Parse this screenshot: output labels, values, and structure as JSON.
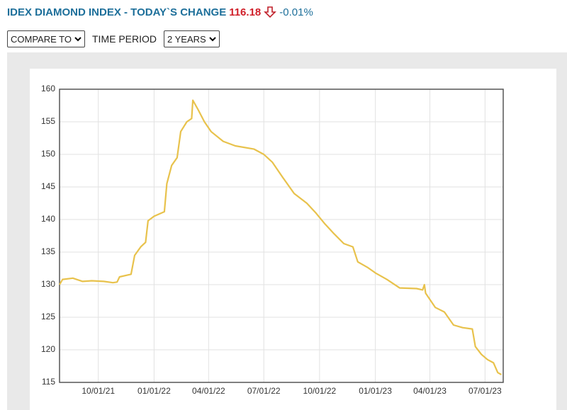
{
  "header": {
    "title": "IDEX DIAMOND INDEX - TODAY`S CHANGE",
    "price": "116.18",
    "change": "-0.01%"
  },
  "controls": {
    "compare": "COMPARE TO",
    "period_label": "TIME PERIOD",
    "period": "2 YEARS"
  },
  "chart_data": {
    "type": "line",
    "color": "#e8c24c",
    "grid": true,
    "xlim": [
      "07/29/21",
      "07/31/23"
    ],
    "xticks": [
      "10/01/21",
      "01/01/22",
      "04/01/22",
      "07/01/22",
      "10/01/22",
      "01/01/23",
      "04/01/23",
      "07/01/23"
    ],
    "ylim": [
      115,
      160
    ],
    "yticks": [
      115,
      120,
      125,
      130,
      135,
      140,
      145,
      150,
      155,
      160
    ],
    "x": [
      "07/29/21",
      "08/03/21",
      "08/20/21",
      "09/05/21",
      "09/20/21",
      "10/10/21",
      "10/25/21",
      "11/01/21",
      "11/05/21",
      "11/24/21",
      "11/30/21",
      "12/10/21",
      "12/18/21",
      "12/22/21",
      "01/01/22",
      "01/18/22",
      "01/22/22",
      "01/30/22",
      "02/08/22",
      "02/14/22",
      "02/24/22",
      "03/04/22",
      "03/06/22",
      "03/15/22",
      "03/25/22",
      "04/05/22",
      "04/25/22",
      "05/15/22",
      "06/15/22",
      "07/01/22",
      "07/15/22",
      "08/01/22",
      "08/20/22",
      "09/10/22",
      "09/25/22",
      "10/10/22",
      "10/25/22",
      "11/10/22",
      "11/25/22",
      "12/03/22",
      "12/20/22",
      "01/01/23",
      "01/20/23",
      "02/10/23",
      "03/10/23",
      "03/20/23",
      "03/23/23",
      "03/25/23",
      "04/10/23",
      "04/25/23",
      "05/10/23",
      "05/25/23",
      "06/10/23",
      "06/15/23",
      "06/25/23",
      "07/05/23",
      "07/15/23",
      "07/22/23",
      "07/28/23"
    ],
    "values": [
      130.0,
      130.8,
      131.0,
      130.5,
      130.6,
      130.5,
      130.3,
      130.4,
      131.2,
      131.6,
      134.5,
      135.8,
      136.5,
      139.8,
      140.5,
      141.2,
      145.5,
      148.3,
      149.5,
      153.5,
      155.0,
      155.5,
      158.3,
      156.8,
      155.0,
      153.5,
      152.0,
      151.3,
      150.8,
      150.0,
      148.8,
      146.5,
      144.0,
      142.5,
      141.0,
      139.3,
      137.8,
      136.3,
      135.8,
      133.5,
      132.6,
      131.8,
      130.8,
      129.5,
      129.4,
      129.2,
      130.0,
      128.7,
      126.5,
      125.8,
      123.8,
      123.4,
      123.2,
      120.5,
      119.3,
      118.5,
      118.0,
      116.5,
      116.2
    ]
  }
}
